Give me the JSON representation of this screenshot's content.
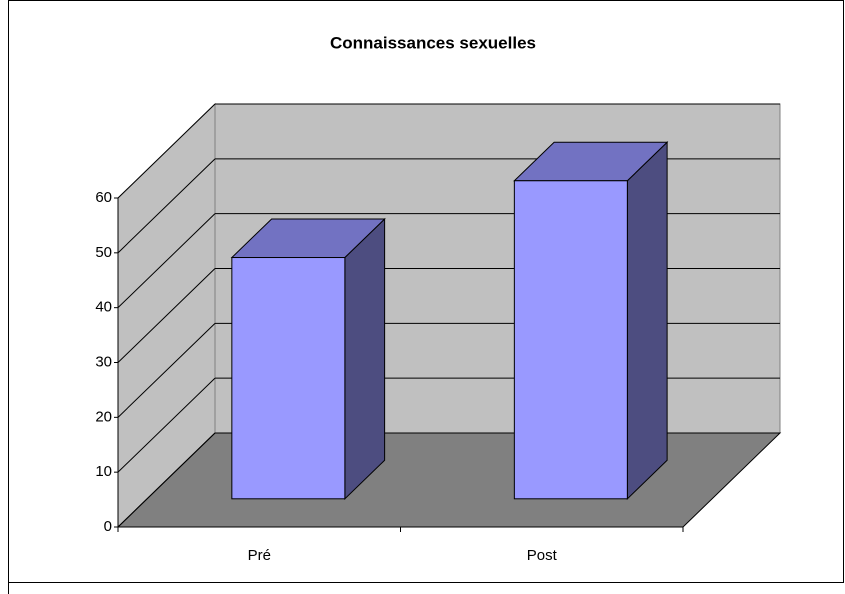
{
  "chart_data": {
    "type": "bar3d",
    "title": "Connaissances sexuelles",
    "categories": [
      "Pré",
      "Post"
    ],
    "values": [
      44,
      58
    ],
    "color": "#9999ff",
    "ylim": [
      0,
      60
    ],
    "yticks": [
      0,
      10,
      20,
      30,
      40,
      50,
      60
    ],
    "grid": true
  }
}
